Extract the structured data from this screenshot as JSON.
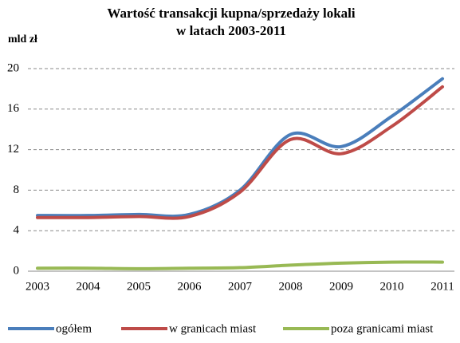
{
  "chart_data": {
    "type": "line",
    "title": [
      "Wartość transakcji kupna/sprzedaży lokali",
      "w latach 2003-2011"
    ],
    "y_label": "mld zł",
    "categories": [
      "2003",
      "2004",
      "2005",
      "2006",
      "2007",
      "2008",
      "2009",
      "2010",
      "2011"
    ],
    "series": [
      {
        "name": "ogółem",
        "color": "#4a7ebb",
        "values": [
          5.5,
          5.5,
          5.6,
          5.6,
          8.0,
          13.5,
          12.3,
          15.3,
          19.0
        ]
      },
      {
        "name": "w granicach miast",
        "color": "#be4b48",
        "values": [
          5.3,
          5.3,
          5.4,
          5.4,
          7.8,
          13.0,
          11.6,
          14.3,
          18.2
        ]
      },
      {
        "name": "poza granicami miast",
        "color": "#98b954",
        "values": [
          0.3,
          0.3,
          0.25,
          0.3,
          0.35,
          0.6,
          0.8,
          0.9,
          0.9
        ]
      }
    ],
    "ylim": [
      0,
      20
    ],
    "yticks": [
      0,
      4,
      8,
      12,
      16,
      20
    ],
    "grid": true,
    "legend": "bottom"
  }
}
